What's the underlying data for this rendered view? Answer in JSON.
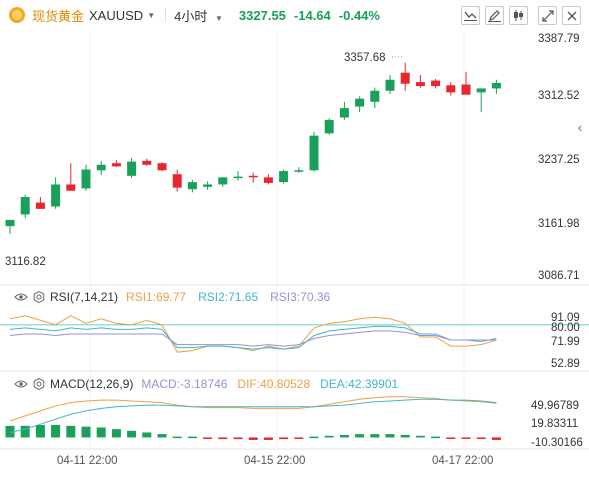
{
  "header": {
    "symbol_name": "现货黄金",
    "symbol_code": "XAUUSD",
    "period": "4小时",
    "price": "3327.55",
    "change": "-14.64",
    "change_pct": "-0.44%"
  },
  "toolbar": {
    "icons": [
      "indicator-icon",
      "draw-icon",
      "candle-type-icon",
      "fullscreen-icon",
      "close-icon"
    ]
  },
  "price_axis": [
    "3387.79",
    "3312.52",
    "3237.25",
    "3161.98",
    "3086.71"
  ],
  "annotations": {
    "high": "3357.68",
    "low": "3116.82"
  },
  "rsi": {
    "title": "RSI(7,14,21)",
    "rsi1": "RSI1:69.77",
    "rsi2": "RSI2:71.65",
    "rsi3": "RSI3:70.36",
    "axis": [
      "91.09",
      "80.00",
      "71.99",
      "52.89"
    ]
  },
  "macd": {
    "title": "MACD(12,26,9)",
    "macd": "MACD:-3.18746",
    "dif": "DIF:40.80528",
    "dea": "DEA:42.39901",
    "axis": [
      "49.96789",
      "19.83311",
      "-10.30166"
    ]
  },
  "time_axis": [
    "04-11 22:00",
    "04-15 22:00",
    "04-17 22:00"
  ],
  "colors": {
    "up": "#19a05a",
    "down": "#e8262e",
    "rsi1": "#f0a045",
    "rsi2": "#3fb8c8",
    "rsi3": "#9b8fd6"
  },
  "chart_data": [
    {
      "type": "candlestick",
      "title": "XAUUSD 4小时",
      "ylim": [
        3086.71,
        3387.79
      ],
      "candles": [
        {
          "o": 3150,
          "h": 3158,
          "l": 3140,
          "c": 3158
        },
        {
          "o": 3165,
          "h": 3190,
          "l": 3160,
          "c": 3187
        },
        {
          "o": 3180,
          "h": 3187,
          "l": 3173,
          "c": 3172
        },
        {
          "o": 3175,
          "h": 3212,
          "l": 3172,
          "c": 3203
        },
        {
          "o": 3203,
          "h": 3230,
          "l": 3198,
          "c": 3195
        },
        {
          "o": 3198,
          "h": 3228,
          "l": 3195,
          "c": 3222
        },
        {
          "o": 3221,
          "h": 3233,
          "l": 3215,
          "c": 3228
        },
        {
          "o": 3230,
          "h": 3234,
          "l": 3225,
          "c": 3226
        },
        {
          "o": 3214,
          "h": 3237,
          "l": 3211,
          "c": 3232
        },
        {
          "o": 3233,
          "h": 3236,
          "l": 3227,
          "c": 3228
        },
        {
          "o": 3230,
          "h": 3231,
          "l": 3220,
          "c": 3221
        },
        {
          "o": 3216,
          "h": 3222,
          "l": 3194,
          "c": 3199
        },
        {
          "o": 3197,
          "h": 3209,
          "l": 3193,
          "c": 3206
        },
        {
          "o": 3200,
          "h": 3207,
          "l": 3196,
          "c": 3203
        },
        {
          "o": 3203,
          "h": 3212,
          "l": 3200,
          "c": 3212
        },
        {
          "o": 3213,
          "h": 3220,
          "l": 3208,
          "c": 3213
        },
        {
          "o": 3214,
          "h": 3218,
          "l": 3205,
          "c": 3213
        },
        {
          "o": 3212,
          "h": 3216,
          "l": 3203,
          "c": 3205
        },
        {
          "o": 3206,
          "h": 3222,
          "l": 3204,
          "c": 3220
        },
        {
          "o": 3220,
          "h": 3225,
          "l": 3218,
          "c": 3221
        },
        {
          "o": 3221,
          "h": 3270,
          "l": 3219,
          "c": 3265
        },
        {
          "o": 3268,
          "h": 3287,
          "l": 3266,
          "c": 3285
        },
        {
          "o": 3288,
          "h": 3308,
          "l": 3285,
          "c": 3300
        },
        {
          "o": 3302,
          "h": 3315,
          "l": 3295,
          "c": 3312
        },
        {
          "o": 3308,
          "h": 3326,
          "l": 3300,
          "c": 3322
        },
        {
          "o": 3322,
          "h": 3342,
          "l": 3318,
          "c": 3336
        },
        {
          "o": 3345,
          "h": 3357.68,
          "l": 3322,
          "c": 3331
        },
        {
          "o": 3333,
          "h": 3342,
          "l": 3326,
          "c": 3328
        },
        {
          "o": 3335,
          "h": 3337,
          "l": 3325,
          "c": 3328
        },
        {
          "o": 3329,
          "h": 3333,
          "l": 3316,
          "c": 3320
        },
        {
          "o": 3330,
          "h": 3346,
          "l": 3318,
          "c": 3317
        },
        {
          "o": 3320,
          "h": 3325,
          "l": 3295,
          "c": 3325
        },
        {
          "o": 3325,
          "h": 3336,
          "l": 3318,
          "c": 3332
        }
      ],
      "time_labels": [
        "04-11 22:00",
        "04-15 22:00",
        "04-17 22:00"
      ]
    },
    {
      "type": "line",
      "title": "RSI(7,14,21)",
      "ylim": [
        52.89,
        91.09
      ],
      "series": [
        {
          "name": "RSI1",
          "values": [
            84,
            86,
            83,
            80,
            86,
            81,
            84,
            81,
            80,
            83,
            80,
            62,
            63,
            66,
            66,
            65,
            63,
            66,
            64,
            66,
            78,
            81,
            82,
            84,
            85,
            84,
            81,
            72,
            72,
            66,
            66,
            67,
            70
          ]
        },
        {
          "name": "RSI2",
          "values": [
            77,
            78,
            77,
            76,
            78,
            77,
            78,
            77,
            77,
            78,
            77,
            65,
            65,
            66,
            66,
            65,
            64,
            65,
            64,
            65,
            73,
            76,
            77,
            78,
            79,
            79,
            78,
            74,
            74,
            70,
            70,
            69,
            71
          ]
        },
        {
          "name": "RSI3",
          "values": [
            73,
            74,
            74,
            73,
            74,
            74,
            74,
            74,
            74,
            74,
            74,
            67,
            67,
            67,
            67,
            67,
            66,
            67,
            66,
            67,
            71,
            73,
            74,
            75,
            76,
            76,
            75,
            73,
            73,
            70,
            70,
            70,
            70
          ]
        }
      ],
      "reference_line": 80.0
    },
    {
      "type": "bar",
      "title": "MACD(12,26,9)",
      "ylim": [
        -10.30166,
        49.96789
      ],
      "series": [
        {
          "name": "MACD",
          "values": [
            14,
            14,
            15,
            15,
            14,
            13,
            12,
            10,
            8,
            6,
            4,
            1,
            1,
            -1,
            -2,
            -2,
            -3,
            -3,
            -2,
            -1,
            1,
            2,
            3,
            4,
            4,
            4,
            3,
            2,
            1,
            -1,
            -1,
            -1,
            -3
          ]
        },
        {
          "name": "DIF",
          "values": [
            20,
            26,
            32,
            38,
            42,
            44,
            45,
            45,
            44,
            43,
            42,
            39,
            37,
            36,
            36,
            36,
            35,
            35,
            35,
            35,
            37,
            40,
            43,
            46,
            48,
            49,
            49,
            48,
            47,
            45,
            44,
            43,
            41
          ]
        },
        {
          "name": "DEA",
          "values": [
            6,
            10,
            16,
            22,
            28,
            32,
            35,
            37,
            38,
            39,
            39,
            38,
            37,
            37,
            37,
            37,
            37,
            37,
            37,
            37,
            37,
            38,
            39,
            41,
            43,
            44,
            45,
            46,
            46,
            45,
            45,
            44,
            42
          ]
        }
      ]
    }
  ]
}
